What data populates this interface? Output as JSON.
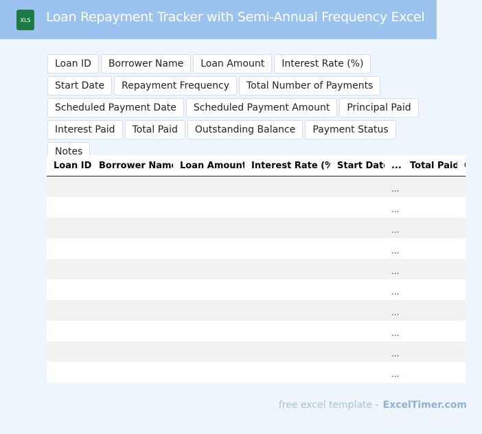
{
  "header": {
    "icon_label": "XLS",
    "title": "Loan Repayment Tracker with Semi-Annual Frequency Excel"
  },
  "fields": [
    "Loan ID",
    "Borrower Name",
    "Loan Amount",
    "Interest Rate (%)",
    "Start Date",
    "Repayment Frequency",
    "Total Number of Payments",
    "Scheduled Payment Date",
    "Scheduled Payment Amount",
    "Principal Paid",
    "Interest Paid",
    "Total Paid",
    "Outstanding Balance",
    "Payment Status",
    "Notes"
  ],
  "table": {
    "columns": [
      "Loan ID",
      "Borrower Name",
      "Loan Amount",
      "Interest Rate (%)",
      "Start Date",
      "...",
      "Total Paid",
      "Outstanding Balance"
    ],
    "rows": [
      "...",
      "...",
      "...",
      "...",
      "...",
      "...",
      "...",
      "...",
      "...",
      "..."
    ]
  },
  "footer": {
    "prefix": "free excel template -",
    "site": "ExcelTimer.com"
  }
}
